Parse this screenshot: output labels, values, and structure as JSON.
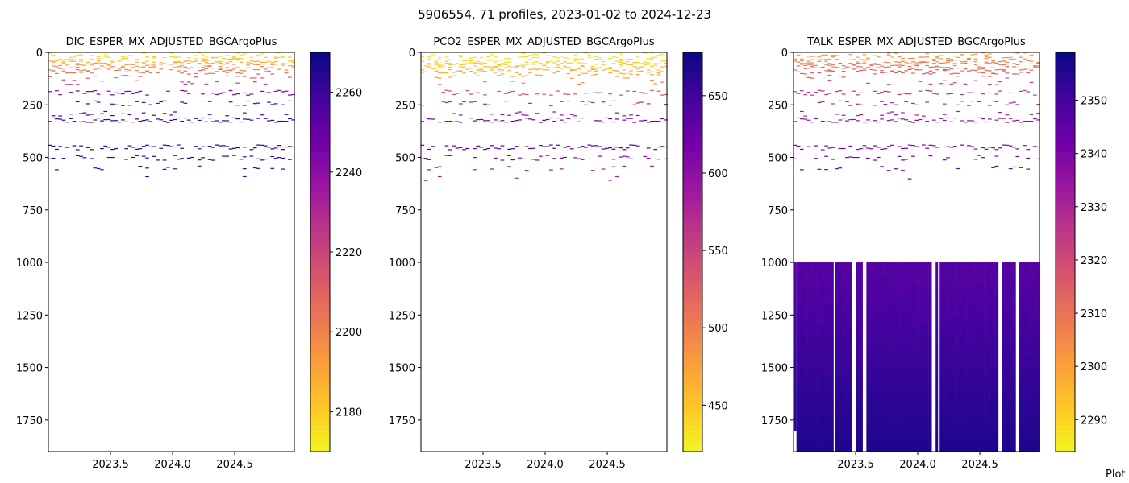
{
  "suptitle": "5906554, 71 profiles, 2023-01-02 to 2024-12-23",
  "watermark": "Plot",
  "colormap": "plasma",
  "colors": {
    "cmap_stops": [
      "#0d0887",
      "#46039f",
      "#7201a8",
      "#9c179e",
      "#bd3786",
      "#d8576b",
      "#ed7953",
      "#fb9f3a",
      "#fdca26",
      "#f0f921"
    ],
    "axis": "#000000",
    "background": "#ffffff"
  },
  "chart_data": [
    {
      "type": "heatmap",
      "title": "DIC_ESPER_MX_ADJUSTED_BGCArgoPlus",
      "xlabel": "",
      "ylabel": "",
      "xlim": [
        2023.0,
        2024.98
      ],
      "ylim": [
        1900,
        0
      ],
      "y_inverted": true,
      "xticks": [
        2023.5,
        2024.0,
        2024.5
      ],
      "xtick_labels": [
        "2023.5",
        "2024.0",
        "2024.5"
      ],
      "yticks": [
        0,
        250,
        500,
        750,
        1000,
        1250,
        1500,
        1750
      ],
      "ytick_labels": [
        "0",
        "250",
        "500",
        "750",
        "1000",
        "1250",
        "1500",
        "1750"
      ],
      "colorbar": {
        "vmin": 2170,
        "vmax": 2270,
        "reverse_cmap": true,
        "ticks": [
          2180,
          2200,
          2220,
          2240,
          2260
        ],
        "tick_labels": [
          "2180",
          "2200",
          "2220",
          "2240",
          "2260"
        ]
      },
      "profile_dates": {
        "start": 2023.01,
        "end": 2024.97,
        "count": 71
      },
      "depth_levels": [
        {
          "depth": 10,
          "value": 2175,
          "coverage": 0.3
        },
        {
          "depth": 20,
          "value": 2178,
          "coverage": 0.35
        },
        {
          "depth": 30,
          "value": 2182,
          "coverage": 0.4
        },
        {
          "depth": 40,
          "value": 2186,
          "coverage": 0.5
        },
        {
          "depth": 50,
          "value": 2190,
          "coverage": 0.6
        },
        {
          "depth": 60,
          "value": 2195,
          "coverage": 0.65
        },
        {
          "depth": 75,
          "value": 2200,
          "coverage": 0.8
        },
        {
          "depth": 90,
          "value": 2205,
          "coverage": 0.6
        },
        {
          "depth": 110,
          "value": 2212,
          "coverage": 0.3
        },
        {
          "depth": 140,
          "value": 2220,
          "coverage": 0.2
        },
        {
          "depth": 190,
          "value": 2245,
          "coverage": 0.6
        },
        {
          "depth": 240,
          "value": 2255,
          "coverage": 0.4
        },
        {
          "depth": 290,
          "value": 2258,
          "coverage": 0.3
        },
        {
          "depth": 320,
          "value": 2262,
          "coverage": 0.9
        },
        {
          "depth": 450,
          "value": 2265,
          "coverage": 0.8
        },
        {
          "depth": 500,
          "value": 2262,
          "coverage": 0.4
        },
        {
          "depth": 550,
          "value": 2258,
          "coverage": 0.3
        },
        {
          "depth": 600,
          "value": 2255,
          "coverage": 0.05
        }
      ]
    },
    {
      "type": "heatmap",
      "title": "PCO2_ESPER_MX_ADJUSTED_BGCArgoPlus",
      "xlabel": "",
      "ylabel": "",
      "xlim": [
        2023.0,
        2024.98
      ],
      "ylim": [
        1900,
        0
      ],
      "y_inverted": true,
      "xticks": [
        2023.5,
        2024.0,
        2024.5
      ],
      "xtick_labels": [
        "2023.5",
        "2024.0",
        "2024.5"
      ],
      "yticks": [
        0,
        250,
        500,
        750,
        1000,
        1250,
        1500,
        1750
      ],
      "ytick_labels": [
        "0",
        "250",
        "500",
        "750",
        "1000",
        "1250",
        "1500",
        "1750"
      ],
      "colorbar": {
        "vmin": 420,
        "vmax": 678,
        "reverse_cmap": true,
        "ticks": [
          450,
          500,
          550,
          600,
          650
        ],
        "tick_labels": [
          "450",
          "500",
          "550",
          "600",
          "650"
        ]
      },
      "profile_dates": {
        "start": 2023.01,
        "end": 2024.97,
        "count": 71
      },
      "depth_levels": [
        {
          "depth": 10,
          "value": 430,
          "coverage": 0.3
        },
        {
          "depth": 20,
          "value": 433,
          "coverage": 0.35
        },
        {
          "depth": 30,
          "value": 437,
          "coverage": 0.4
        },
        {
          "depth": 40,
          "value": 441,
          "coverage": 0.5
        },
        {
          "depth": 50,
          "value": 446,
          "coverage": 0.6
        },
        {
          "depth": 60,
          "value": 452,
          "coverage": 0.65
        },
        {
          "depth": 75,
          "value": 460,
          "coverage": 0.8
        },
        {
          "depth": 90,
          "value": 468,
          "coverage": 0.6
        },
        {
          "depth": 110,
          "value": 478,
          "coverage": 0.3
        },
        {
          "depth": 140,
          "value": 495,
          "coverage": 0.2
        },
        {
          "depth": 190,
          "value": 540,
          "coverage": 0.6
        },
        {
          "depth": 240,
          "value": 580,
          "coverage": 0.4
        },
        {
          "depth": 290,
          "value": 600,
          "coverage": 0.3
        },
        {
          "depth": 320,
          "value": 620,
          "coverage": 0.9
        },
        {
          "depth": 450,
          "value": 640,
          "coverage": 0.8
        },
        {
          "depth": 500,
          "value": 610,
          "coverage": 0.4
        },
        {
          "depth": 550,
          "value": 590,
          "coverage": 0.3
        },
        {
          "depth": 600,
          "value": 585,
          "coverage": 0.05
        }
      ]
    },
    {
      "type": "heatmap",
      "title": "TALK_ESPER_MX_ADJUSTED_BGCArgoPlus",
      "xlabel": "",
      "ylabel": "",
      "xlim": [
        2023.0,
        2024.98
      ],
      "ylim": [
        1900,
        0
      ],
      "y_inverted": true,
      "xticks": [
        2023.5,
        2024.0,
        2024.5
      ],
      "xtick_labels": [
        "2023.5",
        "2024.0",
        "2024.5"
      ],
      "yticks": [
        0,
        250,
        500,
        750,
        1000,
        1250,
        1500,
        1750
      ],
      "ytick_labels": [
        "0",
        "250",
        "500",
        "750",
        "1000",
        "1250",
        "1500",
        "1750"
      ],
      "colorbar": {
        "vmin": 2284,
        "vmax": 2359,
        "reverse_cmap": true,
        "ticks": [
          2290,
          2300,
          2310,
          2320,
          2330,
          2340,
          2350
        ],
        "tick_labels": [
          "2290",
          "2300",
          "2310",
          "2320",
          "2330",
          "2340",
          "2350"
        ]
      },
      "profile_dates": {
        "start": 2023.01,
        "end": 2024.97,
        "count": 71
      },
      "depth_levels": [
        {
          "depth": 10,
          "value": 2300,
          "coverage": 0.3
        },
        {
          "depth": 20,
          "value": 2302,
          "coverage": 0.35
        },
        {
          "depth": 30,
          "value": 2304,
          "coverage": 0.4
        },
        {
          "depth": 40,
          "value": 2306,
          "coverage": 0.5
        },
        {
          "depth": 50,
          "value": 2308,
          "coverage": 0.6
        },
        {
          "depth": 60,
          "value": 2310,
          "coverage": 0.65
        },
        {
          "depth": 75,
          "value": 2312,
          "coverage": 0.8
        },
        {
          "depth": 90,
          "value": 2315,
          "coverage": 0.6
        },
        {
          "depth": 110,
          "value": 2318,
          "coverage": 0.3
        },
        {
          "depth": 140,
          "value": 2322,
          "coverage": 0.2
        },
        {
          "depth": 190,
          "value": 2326,
          "coverage": 0.6
        },
        {
          "depth": 240,
          "value": 2330,
          "coverage": 0.4
        },
        {
          "depth": 290,
          "value": 2332,
          "coverage": 0.3
        },
        {
          "depth": 320,
          "value": 2336,
          "coverage": 0.9
        },
        {
          "depth": 450,
          "value": 2340,
          "coverage": 0.8
        },
        {
          "depth": 500,
          "value": 2342,
          "coverage": 0.4
        },
        {
          "depth": 550,
          "value": 2343,
          "coverage": 0.3
        },
        {
          "depth": 600,
          "value": 2344,
          "coverage": 0.05
        }
      ],
      "deep_block": {
        "depth_min": 1000,
        "depth_max": 1900,
        "value_top": 2348,
        "value_bottom": 2357,
        "gap_dates": [
          2023.33,
          2023.48,
          2023.58,
          2024.12,
          2024.17,
          2024.66,
          2024.81
        ],
        "missing_below": [
          {
            "date": 2023.0,
            "depth_min": 1780
          }
        ]
      }
    }
  ]
}
